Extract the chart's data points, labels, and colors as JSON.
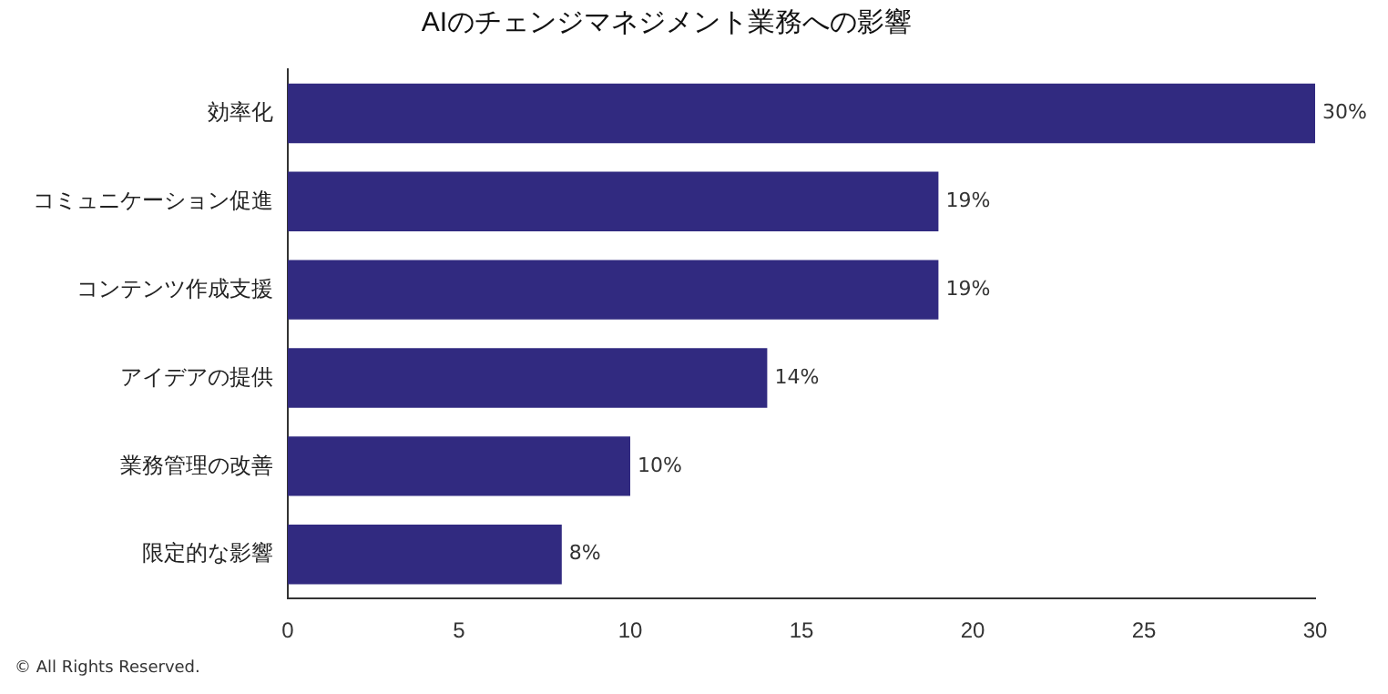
{
  "chart_data": {
    "type": "bar",
    "orientation": "horizontal",
    "title": "AIのチェンジマネジメント業務への影響",
    "categories": [
      "効率化",
      "コミュニケーション促進",
      "コンテンツ作成支援",
      "アイデアの提供",
      "業務管理の改善",
      "限定的な影響"
    ],
    "values": [
      30,
      19,
      19,
      14,
      10,
      8
    ],
    "value_labels": [
      "30%",
      "19%",
      "19%",
      "14%",
      "10%",
      "8%"
    ],
    "color": "#312a80",
    "xlim": [
      0,
      30
    ],
    "xticks": [
      0,
      5,
      10,
      15,
      20,
      25,
      30
    ],
    "grid": false,
    "legend": false,
    "annotations": [
      "© All Rights Reserved."
    ]
  }
}
